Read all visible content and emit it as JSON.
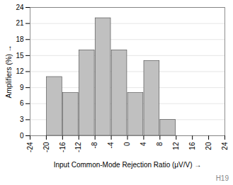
{
  "chart_data": {
    "type": "bar",
    "x": [
      -18,
      -14,
      -10,
      -6,
      -2,
      2,
      6,
      10,
      14
    ],
    "values": [
      11,
      8,
      16,
      22,
      16,
      8,
      14,
      3,
      0
    ],
    "color": "#c0c0c0",
    "xlabel": "Input Common-Mode Rejection Ratio (μV/V)",
    "ylabel": "Amplifiers (%)",
    "xlim": [
      -24,
      24
    ],
    "xticks": [
      -24,
      -20,
      -16,
      -12,
      -8,
      -4,
      0,
      4,
      8,
      12,
      16,
      20,
      24
    ],
    "ylim": [
      0,
      24
    ],
    "yticks": [
      0,
      3,
      6,
      9,
      12,
      15,
      18,
      21,
      24
    ],
    "grid": true,
    "annotations": [
      "H19"
    ]
  }
}
